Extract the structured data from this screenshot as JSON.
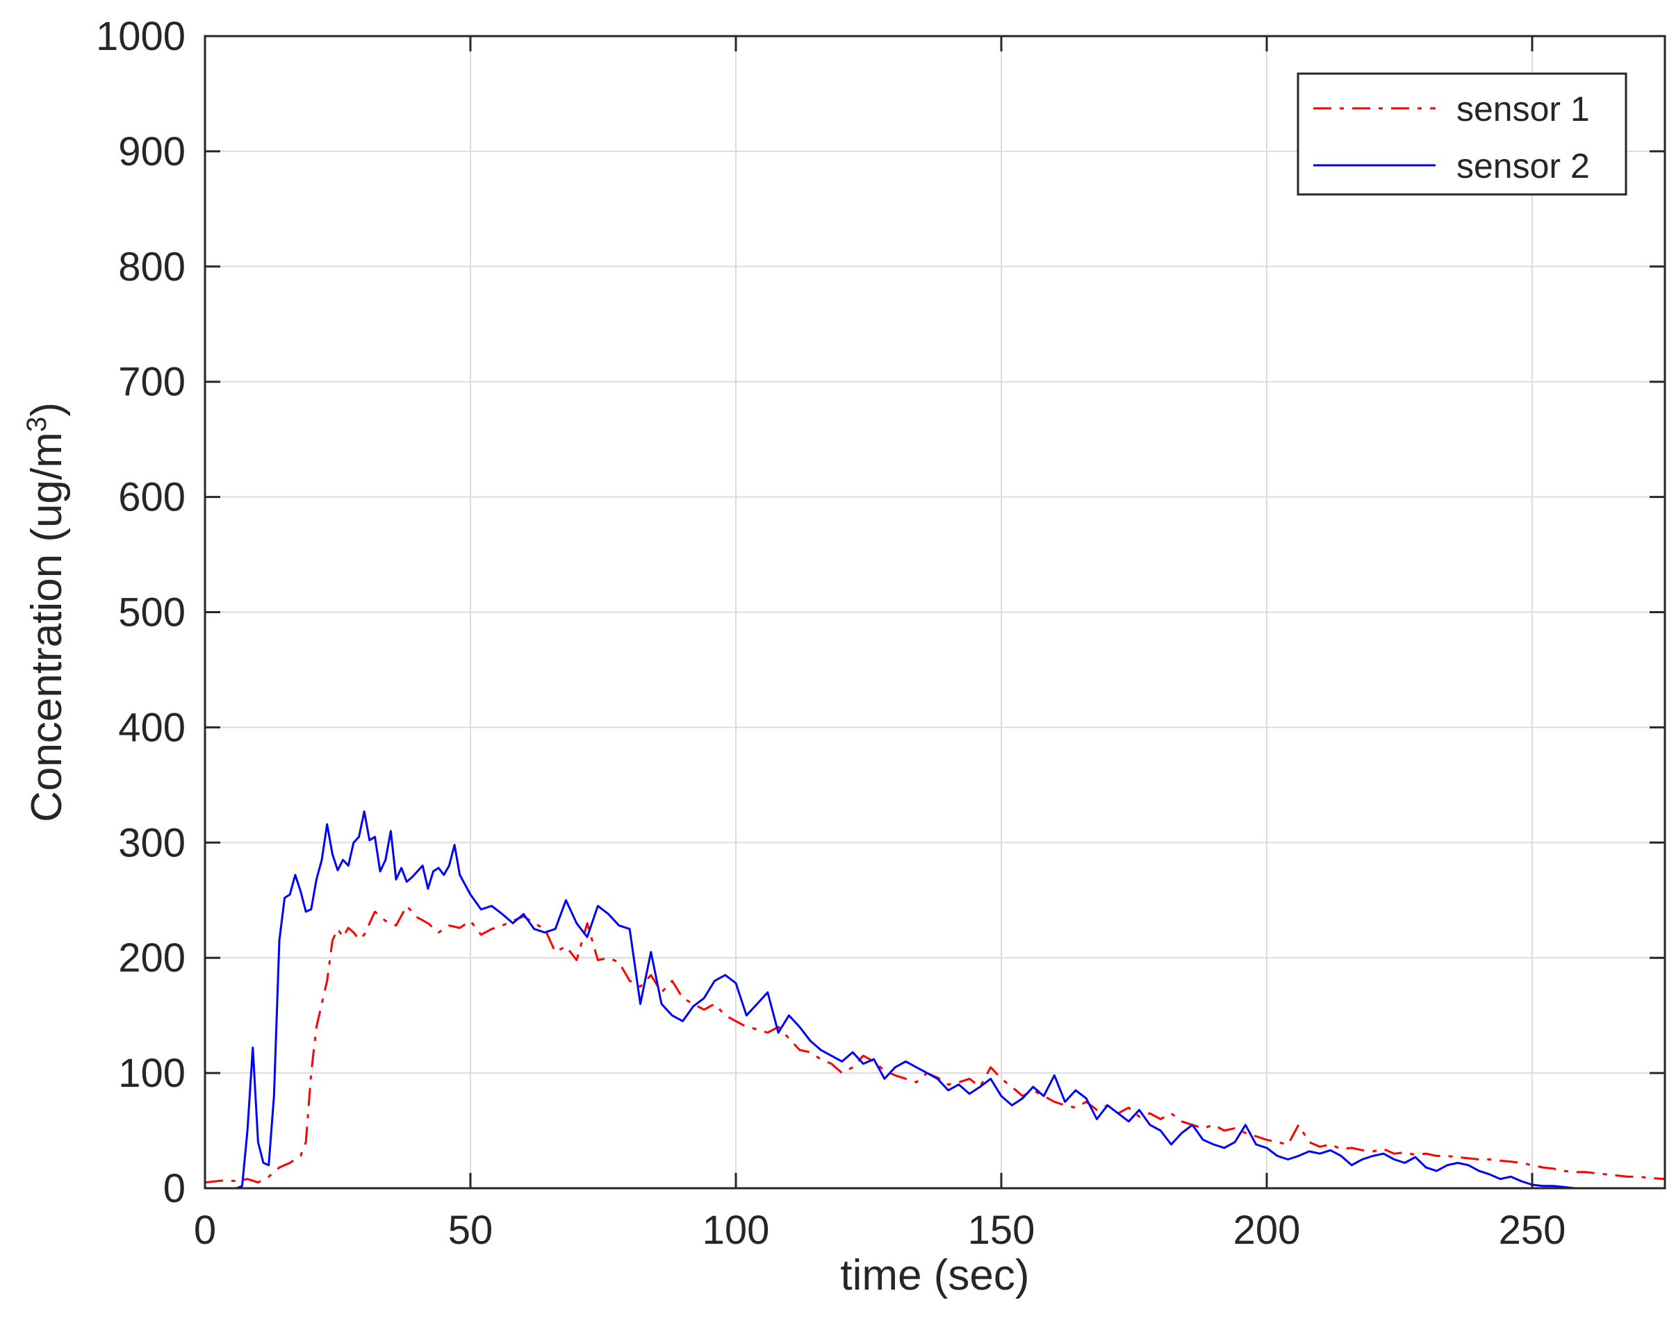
{
  "chart_data": {
    "type": "line",
    "title": "",
    "xlabel": "time (sec)",
    "ylabel": {
      "text": "Concentration (ug/m",
      "superscript": "3",
      "suffix": ")"
    },
    "xlim": [
      0,
      275
    ],
    "ylim": [
      0,
      1000
    ],
    "xticks": [
      "0",
      "50",
      "100",
      "150",
      "200",
      "250"
    ],
    "yticks": [
      "0",
      "100",
      "200",
      "300",
      "400",
      "500",
      "600",
      "700",
      "800",
      "900",
      "1000"
    ],
    "grid": true,
    "legend_position": "top-right",
    "series": [
      {
        "name": "sensor 1",
        "color": "#ff0000",
        "style": "dash-dot",
        "x": [
          0,
          2,
          4,
          6,
          8,
          10,
          12,
          14,
          16,
          18,
          19,
          20,
          21,
          22,
          23,
          24,
          25,
          26,
          27,
          28,
          29,
          30,
          32,
          34,
          36,
          38,
          40,
          42,
          44,
          46,
          48,
          50,
          52,
          54,
          56,
          58,
          60,
          62,
          64,
          66,
          68,
          70,
          72,
          74,
          76,
          78,
          80,
          82,
          84,
          86,
          88,
          90,
          92,
          94,
          96,
          98,
          100,
          102,
          104,
          106,
          108,
          110,
          112,
          114,
          116,
          118,
          120,
          122,
          124,
          126,
          128,
          130,
          132,
          134,
          136,
          138,
          140,
          142,
          144,
          146,
          148,
          150,
          152,
          154,
          156,
          158,
          160,
          162,
          164,
          166,
          168,
          170,
          172,
          174,
          176,
          178,
          180,
          182,
          184,
          186,
          188,
          190,
          192,
          194,
          196,
          198,
          200,
          202,
          204,
          206,
          208,
          210,
          212,
          214,
          216,
          218,
          220,
          222,
          224,
          226,
          228,
          230,
          232,
          234,
          236,
          238,
          240,
          242,
          244,
          246,
          248,
          250,
          252,
          254,
          256,
          258,
          260,
          262,
          264,
          266,
          268,
          270,
          272,
          275
        ],
        "values": [
          5,
          6,
          7,
          6,
          8,
          5,
          10,
          18,
          22,
          28,
          40,
          100,
          140,
          160,
          180,
          215,
          225,
          218,
          226,
          222,
          216,
          220,
          240,
          232,
          228,
          245,
          235,
          230,
          222,
          228,
          226,
          232,
          220,
          225,
          228,
          232,
          236,
          230,
          225,
          205,
          210,
          198,
          230,
          198,
          200,
          196,
          180,
          175,
          185,
          170,
          180,
          165,
          160,
          155,
          160,
          150,
          145,
          140,
          138,
          135,
          140,
          130,
          120,
          118,
          112,
          108,
          100,
          105,
          115,
          110,
          102,
          98,
          95,
          92,
          100,
          96,
          90,
          92,
          95,
          88,
          105,
          95,
          88,
          80,
          85,
          80,
          75,
          72,
          70,
          75,
          68,
          72,
          65,
          70,
          62,
          65,
          60,
          65,
          58,
          55,
          52,
          55,
          50,
          52,
          48,
          45,
          42,
          40,
          38,
          55,
          40,
          36,
          38,
          34,
          35,
          33,
          32,
          34,
          30,
          31,
          29,
          30,
          28,
          28,
          27,
          26,
          25,
          25,
          24,
          23,
          22,
          20,
          18,
          17,
          15,
          14,
          14,
          13,
          12,
          11,
          10,
          10,
          9,
          8
        ]
      },
      {
        "name": "sensor 2",
        "color": "#0000ff",
        "style": "solid",
        "x": [
          0,
          2,
          4,
          6,
          7,
          8,
          9,
          10,
          11,
          12,
          13,
          14,
          15,
          16,
          17,
          18,
          19,
          20,
          21,
          22,
          23,
          24,
          25,
          26,
          27,
          28,
          29,
          30,
          31,
          32,
          33,
          34,
          35,
          36,
          37,
          38,
          39,
          40,
          41,
          42,
          43,
          44,
          45,
          46,
          47,
          48,
          50,
          52,
          54,
          56,
          58,
          60,
          62,
          64,
          66,
          68,
          70,
          72,
          74,
          76,
          78,
          80,
          82,
          84,
          86,
          88,
          90,
          92,
          94,
          96,
          98,
          100,
          102,
          104,
          106,
          108,
          110,
          112,
          114,
          116,
          118,
          120,
          122,
          124,
          126,
          128,
          130,
          132,
          134,
          136,
          138,
          140,
          142,
          144,
          146,
          148,
          150,
          152,
          154,
          156,
          158,
          160,
          162,
          164,
          166,
          168,
          170,
          172,
          174,
          176,
          178,
          180,
          182,
          184,
          186,
          188,
          190,
          192,
          194,
          196,
          198,
          200,
          202,
          204,
          206,
          208,
          210,
          212,
          214,
          216,
          218,
          220,
          222,
          224,
          226,
          228,
          230,
          232,
          234,
          236,
          238,
          240,
          242,
          244,
          246,
          248,
          250,
          252,
          254,
          256,
          258,
          260,
          262,
          264,
          266,
          268,
          270,
          272,
          275
        ],
        "values": [
          0,
          0,
          0,
          0,
          2,
          50,
          122,
          40,
          22,
          20,
          80,
          215,
          252,
          255,
          272,
          258,
          240,
          242,
          268,
          285,
          316,
          290,
          276,
          285,
          280,
          300,
          305,
          327,
          302,
          305,
          275,
          285,
          310,
          268,
          278,
          266,
          270,
          275,
          280,
          260,
          275,
          278,
          272,
          280,
          298,
          272,
          255,
          242,
          245,
          238,
          230,
          238,
          225,
          222,
          225,
          250,
          230,
          218,
          245,
          238,
          228,
          225,
          160,
          205,
          160,
          150,
          145,
          158,
          165,
          180,
          185,
          178,
          150,
          160,
          170,
          135,
          150,
          140,
          128,
          120,
          115,
          110,
          118,
          108,
          112,
          95,
          105,
          110,
          105,
          100,
          95,
          85,
          90,
          82,
          88,
          95,
          80,
          72,
          78,
          88,
          80,
          98,
          75,
          85,
          78,
          60,
          72,
          65,
          58,
          68,
          55,
          50,
          38,
          48,
          55,
          42,
          38,
          35,
          40,
          55,
          38,
          35,
          28,
          25,
          28,
          32,
          30,
          33,
          28,
          20,
          25,
          28,
          30,
          25,
          22,
          27,
          18,
          15,
          20,
          22,
          20,
          15,
          12,
          8,
          10,
          6,
          3,
          2,
          2,
          1,
          0,
          0,
          0,
          0,
          0,
          0,
          0,
          0,
          0
        ]
      }
    ]
  }
}
